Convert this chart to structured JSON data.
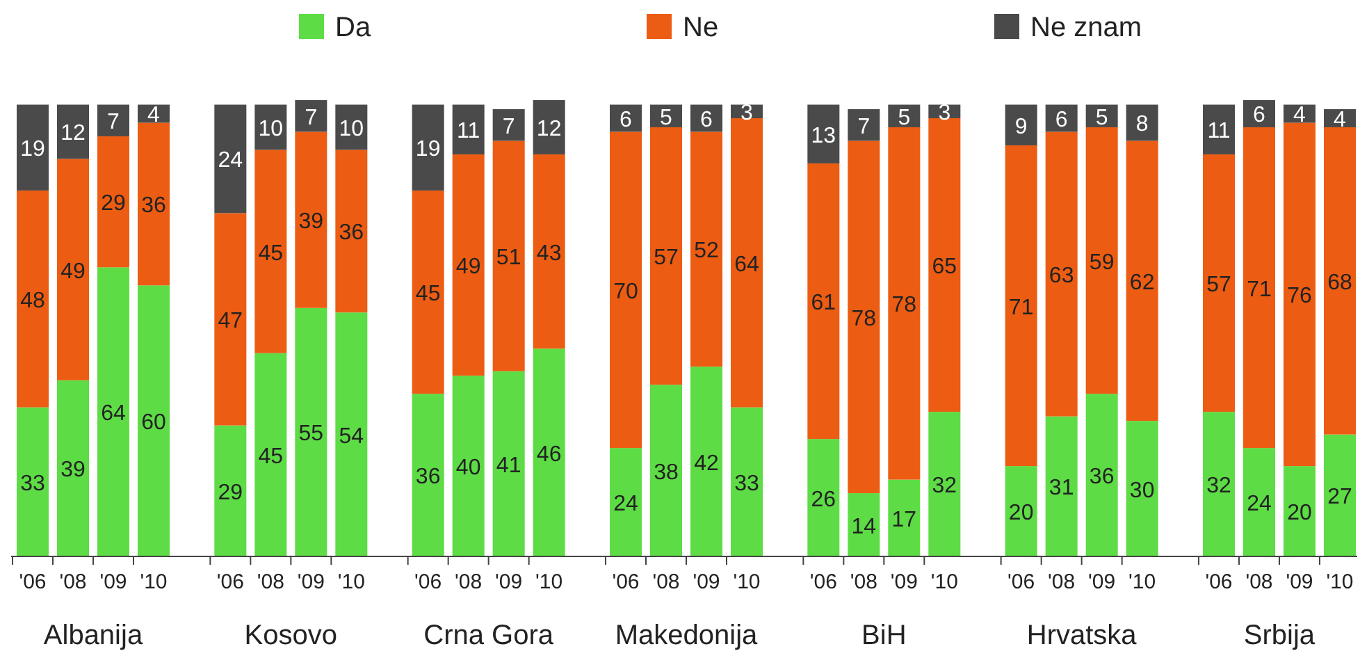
{
  "chart_data": {
    "type": "bar",
    "stacked": true,
    "data_labels": true,
    "legend": "top",
    "tick_labels": "x",
    "ylim": [
      0,
      101
    ],
    "categories": [
      "'06",
      "'08",
      "'09",
      "'10",
      "'06",
      "'08",
      "'09",
      "'10",
      "'06",
      "'08",
      "'09",
      "'10",
      "'06",
      "'08",
      "'09",
      "'10",
      "'06",
      "'08",
      "'09",
      "'10",
      "'06",
      "'08",
      "'09",
      "'10",
      "'06",
      "'08",
      "'09",
      "'10"
    ],
    "annotations": [
      "Albanija",
      "Kosovo",
      "Crna Gora",
      "Makedonija",
      "BiH",
      "Hrvatska",
      "Srbija"
    ],
    "series": [
      {
        "name": "Da",
        "color": "#5ddc45",
        "values": [
          33,
          39,
          64,
          60,
          29,
          45,
          55,
          54,
          36,
          40,
          41,
          46,
          24,
          38,
          42,
          33,
          26,
          14,
          17,
          32,
          20,
          31,
          36,
          30,
          32,
          24,
          20,
          27
        ]
      },
      {
        "name": "Ne",
        "color": "#ec5c12",
        "values": [
          48,
          49,
          29,
          36,
          47,
          45,
          39,
          36,
          45,
          49,
          51,
          43,
          70,
          57,
          52,
          64,
          61,
          78,
          78,
          65,
          71,
          63,
          59,
          62,
          57,
          71,
          76,
          68
        ]
      },
      {
        "name": "Ne znam",
        "color": "#4a4a4a",
        "values": [
          19,
          12,
          7,
          4,
          24,
          10,
          7,
          10,
          19,
          11,
          7,
          12,
          6,
          5,
          6,
          3,
          13,
          7,
          5,
          3,
          9,
          6,
          5,
          8,
          11,
          6,
          4,
          4
        ]
      }
    ]
  }
}
